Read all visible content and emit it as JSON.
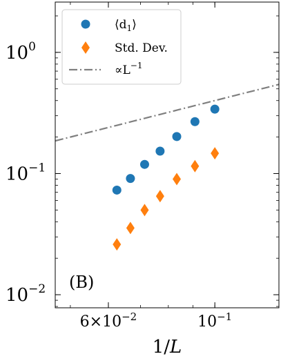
{
  "chart_data": {
    "type": "scatter",
    "title": "",
    "panel_label": "(B)",
    "xlabel": "1/L",
    "ylabel": "",
    "x_scale": "log",
    "y_scale": "log",
    "xlim": [
      0.0465,
      0.136
    ],
    "ylim": [
      0.0078,
      2.6
    ],
    "x_ticks": [
      {
        "value": 0.06,
        "label_main": "6×10",
        "label_exp": "−2"
      },
      {
        "value": 0.1,
        "label_main": "10",
        "label_exp": "−1"
      }
    ],
    "y_ticks": [
      {
        "value": 0.01,
        "label_main": "10",
        "label_exp": "−2"
      },
      {
        "value": 0.1,
        "label_main": "10",
        "label_exp": "−1"
      },
      {
        "value": 1,
        "label_main": "10",
        "label_exp": "0"
      }
    ],
    "grid": false,
    "legend_position": "top-left",
    "series": [
      {
        "name": "⟨d₁⟩",
        "legend_main": "⟨d",
        "legend_sub": "1",
        "legend_end": "⟩",
        "marker": "circle",
        "color": "#1f77b4",
        "x": [
          0.0625,
          0.0667,
          0.0714,
          0.0769,
          0.0833,
          0.0909,
          0.1
        ],
        "y": [
          0.073,
          0.091,
          0.119,
          0.153,
          0.202,
          0.268,
          0.34
        ]
      },
      {
        "name": "Std. Dev.",
        "marker": "diamond",
        "color": "#ff7f0e",
        "x": [
          0.0625,
          0.0667,
          0.0714,
          0.0769,
          0.0833,
          0.0909,
          0.1
        ],
        "y": [
          0.026,
          0.0355,
          0.05,
          0.065,
          0.09,
          0.115,
          0.147
        ]
      },
      {
        "name": "∝L⁻¹",
        "legend_main": "∝L",
        "legend_sup": "−1",
        "style": "dashdot",
        "color": "#7f7f7f",
        "coefficient": 4.0
      }
    ]
  }
}
